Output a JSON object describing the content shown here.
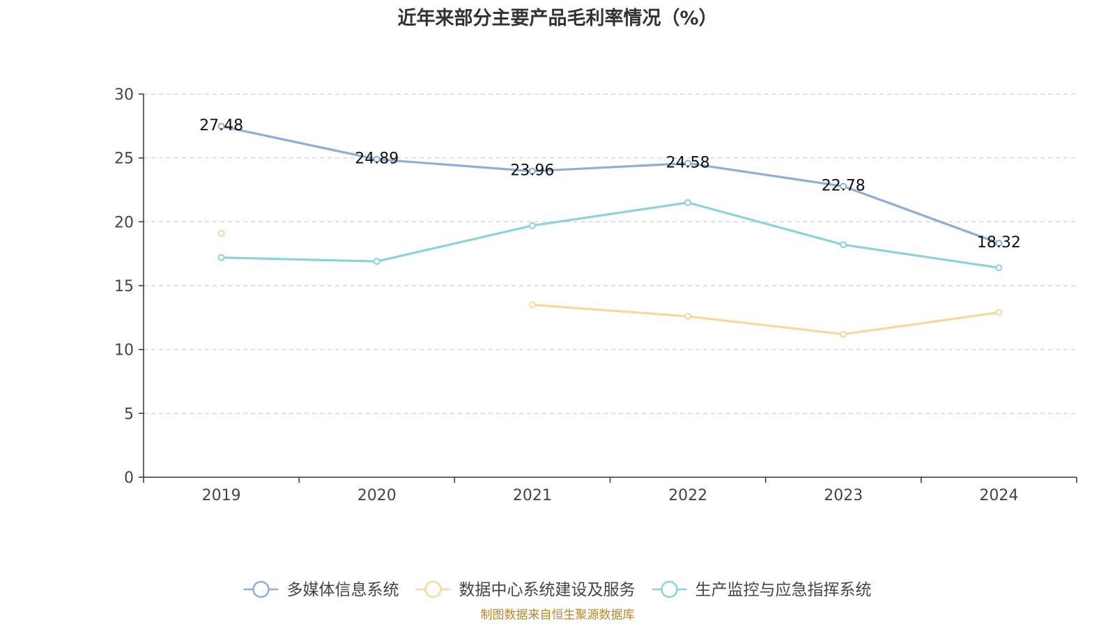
{
  "chart_data": {
    "type": "line",
    "title": "近年来部分主要产品毛利率情况（%）",
    "xlabel": "",
    "ylabel": "",
    "categories": [
      "2019",
      "2020",
      "2021",
      "2022",
      "2023",
      "2024"
    ],
    "ylim": [
      0,
      30
    ],
    "yticks": [
      0,
      5,
      10,
      15,
      20,
      25,
      30
    ],
    "grid": true,
    "legend_position": "bottom",
    "series": [
      {
        "name": "多媒体信息系统",
        "color": "#8eaed8",
        "values": [
          27.48,
          24.89,
          23.96,
          24.58,
          22.78,
          18.32
        ],
        "data_labels": [
          "27.48",
          "24.89",
          "23.96",
          "24.58",
          "22.78",
          "18.32"
        ]
      },
      {
        "name": "数据中心系统建设及服务",
        "color": "#f9d898",
        "values": [
          19.1,
          null,
          13.5,
          12.6,
          11.2,
          12.9
        ],
        "data_labels": []
      },
      {
        "name": "生产监控与应急指挥系统",
        "color": "#88d4d8",
        "values": [
          17.2,
          16.9,
          19.7,
          21.5,
          18.2,
          16.4
        ],
        "data_labels": []
      }
    ]
  },
  "source_note": "制图数据来自恒生聚源数据库"
}
